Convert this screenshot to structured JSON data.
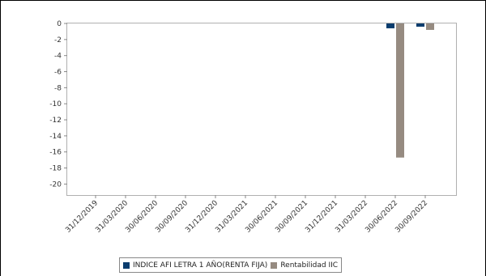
{
  "colors": {
    "background": "#ffffff",
    "frame_border": "#000000",
    "plot_border": "#b0b0b0",
    "axis": "#888888"
  },
  "chart_data": {
    "type": "bar",
    "categories": [
      "31/12/2019",
      "31/03/2020",
      "30/06/2020",
      "30/09/2020",
      "31/12/2020",
      "31/03/2021",
      "30/06/2021",
      "30/09/2021",
      "31/12/2021",
      "31/03/2022",
      "30/06/2022",
      "30/09/2022"
    ],
    "series": [
      {
        "name": "INDICE AFI LETRA 1 AÑO(RENTA FIJA)",
        "color": "#0b3d6e",
        "values": [
          null,
          null,
          null,
          null,
          null,
          null,
          null,
          null,
          null,
          null,
          -0.6,
          -0.4
        ]
      },
      {
        "name": "Rentabilidad IIC",
        "color": "#968b81",
        "values": [
          null,
          null,
          null,
          null,
          null,
          null,
          null,
          null,
          null,
          null,
          -16.7,
          -0.8
        ]
      }
    ],
    "ylim": [
      -22,
      0
    ],
    "yticks": [
      0,
      -2,
      -4,
      -6,
      -8,
      -10,
      -12,
      -14,
      -16,
      -18,
      -20
    ],
    "grid": false,
    "legend": "bottom-center"
  }
}
